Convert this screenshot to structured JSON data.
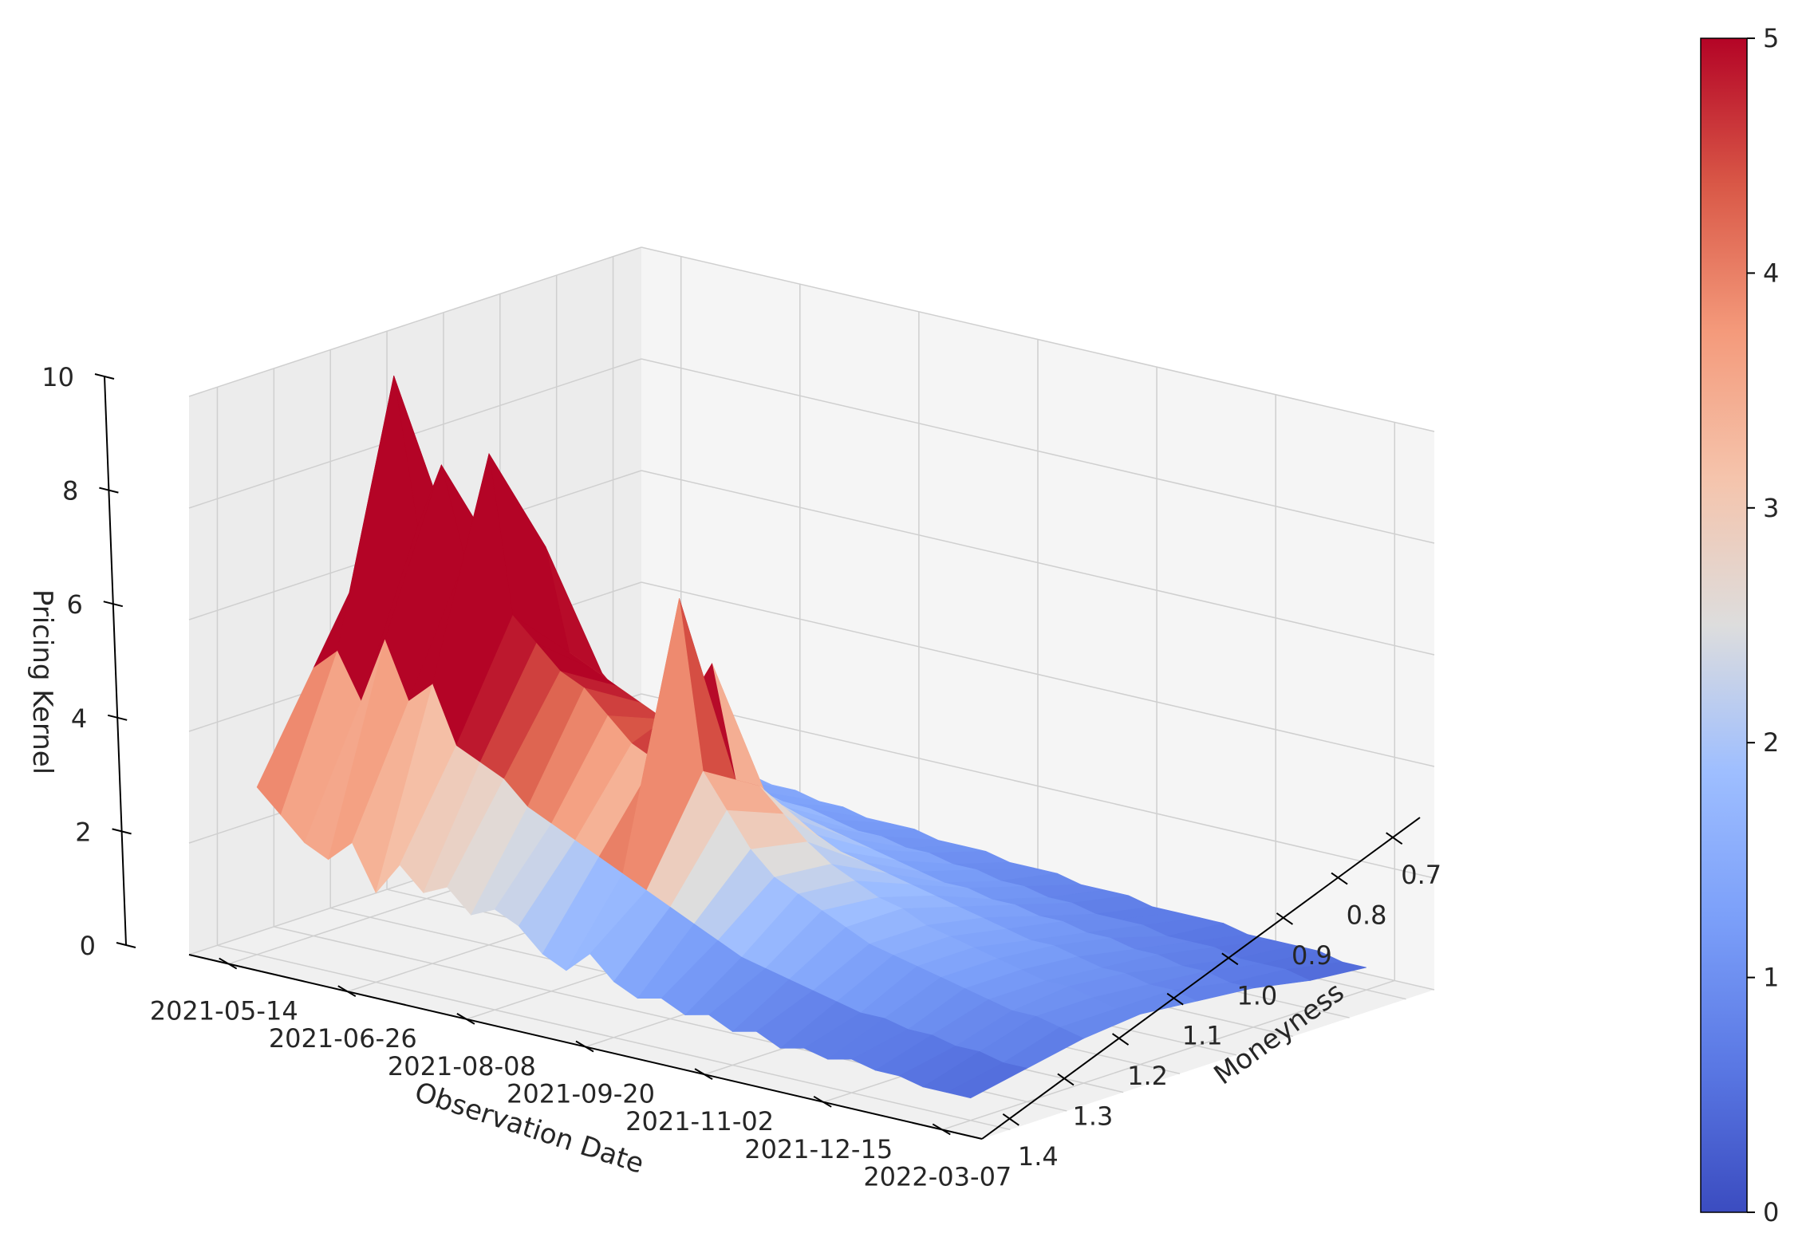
{
  "chart_data": {
    "type": "surface3d",
    "title": "",
    "x_axis": {
      "label": "Observation Date",
      "ticks": [
        "2021-05-14",
        "2021-06-26",
        "2021-08-08",
        "2021-09-20",
        "2021-11-02",
        "2021-12-15",
        "2022-03-07"
      ]
    },
    "y_axis": {
      "label": "Moneyness",
      "ticks": [
        "0.7",
        "0.8",
        "0.9",
        "1.0",
        "1.1",
        "1.2",
        "1.3",
        "1.4"
      ],
      "range": [
        0.65,
        1.45
      ]
    },
    "z_axis": {
      "label": "Pricing Kernel",
      "ticks": [
        "0",
        "2",
        "4",
        "6",
        "8",
        "10"
      ],
      "range": [
        0,
        10
      ]
    },
    "colorbar": {
      "colormap": "coolwarm",
      "range": [
        0,
        5
      ],
      "ticks": [
        "0",
        "1",
        "2",
        "3",
        "4",
        "5"
      ],
      "low_color": "#3b4cc0",
      "mid_color": "#dddddd",
      "high_color": "#b40426"
    },
    "surface": {
      "moneyness": [
        0.7,
        0.8,
        0.9,
        1.0,
        1.1,
        1.2,
        1.3,
        1.4
      ],
      "date_index": [
        0,
        1,
        2,
        3,
        4,
        5,
        6,
        7,
        8,
        9,
        10,
        11,
        12,
        13,
        14,
        15,
        16,
        17,
        18,
        19,
        20,
        21,
        22,
        23,
        24,
        25,
        26,
        27,
        28,
        29,
        30
      ],
      "values": [
        [
          1.6,
          2.4,
          3.4,
          4.6,
          5.8,
          6.6,
          4.8,
          3.0
        ],
        [
          1.5,
          2.1,
          3.0,
          4.8,
          6.6,
          9.8,
          5.2,
          2.6
        ],
        [
          1.4,
          2.0,
          2.8,
          4.2,
          5.6,
          7.2,
          4.4,
          2.2
        ],
        [
          1.3,
          1.9,
          2.7,
          4.4,
          6.4,
          8.4,
          5.6,
          2.0
        ],
        [
          1.3,
          1.8,
          2.6,
          4.0,
          5.2,
          6.8,
          4.6,
          2.4
        ],
        [
          1.2,
          1.8,
          2.6,
          4.2,
          6.8,
          8.8,
          5.0,
          1.6
        ],
        [
          1.2,
          1.7,
          2.4,
          3.8,
          5.0,
          6.0,
          4.0,
          2.2
        ],
        [
          1.1,
          1.6,
          2.3,
          3.6,
          4.8,
          5.6,
          3.8,
          1.8
        ],
        [
          1.1,
          1.5,
          2.2,
          3.4,
          4.6,
          5.2,
          3.6,
          2.0
        ],
        [
          1.0,
          1.5,
          2.1,
          3.2,
          4.4,
          5.0,
          3.2,
          1.6
        ],
        [
          1.0,
          1.4,
          2.0,
          3.0,
          4.2,
          4.6,
          3.0,
          1.8
        ],
        [
          1.0,
          1.3,
          1.9,
          2.8,
          4.6,
          4.2,
          2.8,
          1.6
        ],
        [
          0.9,
          1.3,
          1.8,
          2.6,
          5.4,
          4.0,
          2.6,
          1.2
        ],
        [
          0.9,
          1.2,
          1.7,
          2.4,
          3.4,
          7.0,
          2.4,
          1.0
        ],
        [
          0.9,
          1.2,
          1.6,
          2.2,
          3.4,
          4.0,
          2.2,
          1.4
        ],
        [
          0.8,
          1.1,
          1.5,
          2.0,
          3.0,
          3.4,
          2.0,
          1.0
        ],
        [
          0.8,
          1.1,
          1.4,
          1.9,
          2.6,
          2.8,
          1.8,
          0.8
        ],
        [
          0.8,
          1.0,
          1.3,
          1.8,
          2.3,
          2.4,
          1.6,
          0.9
        ],
        [
          0.7,
          1.0,
          1.3,
          1.7,
          2.1,
          2.2,
          1.4,
          0.7
        ],
        [
          0.7,
          0.9,
          1.2,
          1.6,
          1.9,
          2.0,
          1.3,
          0.8
        ],
        [
          0.7,
          0.9,
          1.2,
          1.5,
          1.8,
          1.8,
          1.2,
          0.6
        ],
        [
          0.6,
          0.8,
          1.1,
          1.4,
          1.6,
          1.6,
          1.1,
          0.7
        ],
        [
          0.6,
          0.8,
          1.1,
          1.3,
          1.5,
          1.5,
          1.0,
          0.5
        ],
        [
          0.6,
          0.8,
          1.0,
          1.2,
          1.4,
          1.4,
          0.9,
          0.6
        ],
        [
          0.6,
          0.7,
          1.0,
          1.2,
          1.3,
          1.3,
          0.9,
          0.5
        ],
        [
          0.5,
          0.7,
          0.9,
          1.1,
          1.2,
          1.2,
          0.8,
          0.6
        ],
        [
          0.5,
          0.7,
          0.9,
          1.0,
          1.1,
          1.1,
          0.8,
          0.5
        ],
        [
          0.5,
          0.6,
          0.8,
          1.0,
          1.1,
          1.0,
          0.7,
          0.5
        ],
        [
          0.5,
          0.6,
          0.8,
          0.9,
          1.0,
          1.0,
          0.7,
          0.4
        ],
        [
          0.4,
          0.6,
          0.7,
          0.9,
          0.9,
          0.9,
          0.6,
          0.4
        ],
        [
          0.4,
          0.5,
          0.7,
          0.8,
          0.9,
          0.8,
          0.6,
          0.4
        ]
      ]
    }
  }
}
